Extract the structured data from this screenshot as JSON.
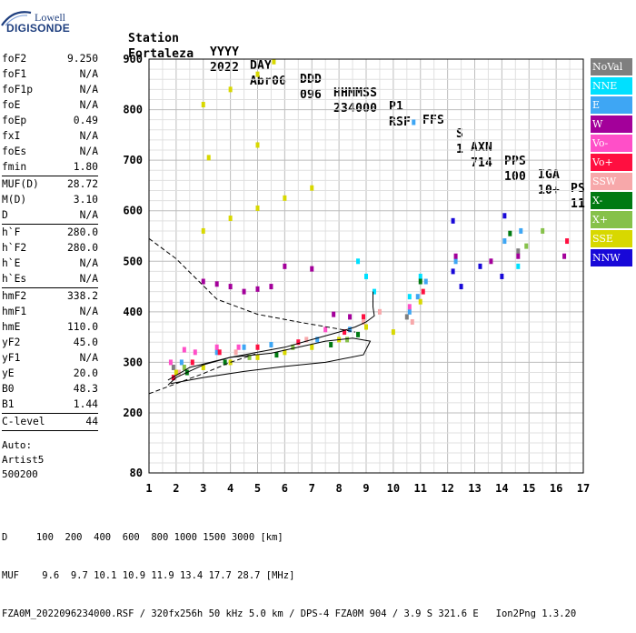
{
  "logo": {
    "line1": "Lowell",
    "line2": "DIGISONDE"
  },
  "header": {
    "labels": [
      "Station",
      "YYYY",
      "DAY",
      "DDD",
      "HHMMSS",
      "P1",
      "FFS",
      "S",
      "AXN",
      "PPS",
      "IGA",
      "PS"
    ],
    "values": [
      "Fortaleza",
      "2022",
      "Abr06",
      "096",
      "234000",
      "RSF",
      "",
      "1",
      "714",
      "100",
      "10+",
      "11"
    ]
  },
  "params": {
    "group1": [
      {
        "name": "foF2",
        "value": "9.250"
      },
      {
        "name": "foF1",
        "value": "N/A"
      },
      {
        "name": "foF1p",
        "value": "N/A"
      },
      {
        "name": "foE",
        "value": "N/A"
      },
      {
        "name": "foEp",
        "value": "0.49"
      },
      {
        "name": "fxI",
        "value": "N/A"
      },
      {
        "name": "foEs",
        "value": "N/A"
      },
      {
        "name": "fmin",
        "value": "1.80"
      }
    ],
    "group2": [
      {
        "name": "MUF(D)",
        "value": "28.72"
      },
      {
        "name": "M(D)",
        "value": "3.10"
      },
      {
        "name": "D",
        "value": "N/A"
      }
    ],
    "group3": [
      {
        "name": "h`F",
        "value": "280.0"
      },
      {
        "name": "h`F2",
        "value": "280.0"
      },
      {
        "name": "h`E",
        "value": "N/A"
      },
      {
        "name": "h`Es",
        "value": "N/A"
      }
    ],
    "group4": [
      {
        "name": "hmF2",
        "value": "338.2"
      },
      {
        "name": "hmF1",
        "value": "N/A"
      },
      {
        "name": "hmE",
        "value": "110.0"
      },
      {
        "name": "yF2",
        "value": "45.0"
      },
      {
        "name": "yF1",
        "value": "N/A"
      },
      {
        "name": "yE",
        "value": "20.0"
      },
      {
        "name": "B0",
        "value": "48.3"
      },
      {
        "name": "B1",
        "value": "1.44"
      }
    ],
    "clevel": {
      "name": "C-level",
      "value": "44"
    },
    "auto": [
      "Auto:",
      "Artist5",
      "500200"
    ]
  },
  "legend": [
    {
      "label": "NoVal",
      "color": "#7f7f7f"
    },
    {
      "label": "NNE",
      "color": "#00e0ff"
    },
    {
      "label": "E",
      "color": "#3ea6f4"
    },
    {
      "label": "W",
      "color": "#a3009a"
    },
    {
      "label": "Vo-",
      "color": "#ff4fc8"
    },
    {
      "label": "Vo+",
      "color": "#ff0f40"
    },
    {
      "label": "SSW",
      "color": "#f7a8aa"
    },
    {
      "label": "X-",
      "color": "#007a12"
    },
    {
      "label": "X+",
      "color": "#86c14a"
    },
    {
      "label": "SSE",
      "color": "#d8d800"
    },
    {
      "label": "NNW",
      "color": "#1808d8"
    }
  ],
  "bottom": {
    "line1": "D     100  200  400  600  800 1000 1500 3000 [km]",
    "line2": "MUF    9.6  9.7 10.1 10.9 11.9 13.4 17.7 28.7 [MHz]",
    "line3": "FZA0M_2022096234000.RSF / 320fx256h 50 kHz 5.0 km / DPS-4 FZA0M 904 / 3.9 S 321.6 E   Ion2Png 1.3.20"
  },
  "chart_data": {
    "type": "scatter",
    "x_ticks": [
      "1",
      "2",
      "3",
      "4",
      "5",
      "6",
      "7",
      "8",
      "9",
      "10",
      "11",
      "12",
      "13",
      "14",
      "15",
      "16",
      "17"
    ],
    "y_ticks": [
      "80",
      "200",
      "300",
      "400",
      "500",
      "600",
      "700",
      "800",
      "900"
    ],
    "xlim": [
      1,
      17
    ],
    "ylim": [
      80,
      900
    ],
    "grid": true,
    "legend_position": "right",
    "series": [
      {
        "name": "NoVal",
        "color": "#7f7f7f",
        "points": [
          [
            1.9,
            290
          ],
          [
            10.5,
            390
          ],
          [
            14.6,
            520
          ]
        ]
      },
      {
        "name": "NNE",
        "color": "#00e0ff",
        "points": [
          [
            8.7,
            500
          ],
          [
            9.0,
            470
          ],
          [
            9.3,
            440
          ],
          [
            10.6,
            430
          ],
          [
            11.0,
            470
          ],
          [
            14.6,
            490
          ]
        ]
      },
      {
        "name": "E",
        "color": "#3ea6f4",
        "points": [
          [
            2.2,
            300
          ],
          [
            3.5,
            320
          ],
          [
            4.5,
            330
          ],
          [
            5.5,
            335
          ],
          [
            7.2,
            345
          ],
          [
            8.4,
            365
          ],
          [
            10.6,
            400
          ],
          [
            10.9,
            430
          ],
          [
            11.2,
            460
          ],
          [
            12.3,
            500
          ],
          [
            14.1,
            540
          ],
          [
            14.7,
            560
          ],
          [
            10.75,
            775
          ]
        ]
      },
      {
        "name": "W",
        "color": "#a3009a",
        "points": [
          [
            3.0,
            460
          ],
          [
            3.5,
            455
          ],
          [
            4.0,
            450
          ],
          [
            4.5,
            440
          ],
          [
            5.0,
            445
          ],
          [
            5.5,
            450
          ],
          [
            6.0,
            490
          ],
          [
            7.0,
            485
          ],
          [
            7.8,
            395
          ],
          [
            8.4,
            390
          ],
          [
            12.3,
            510
          ],
          [
            13.6,
            500
          ],
          [
            14.6,
            510
          ],
          [
            16.3,
            510
          ]
        ]
      },
      {
        "name": "Vo-",
        "color": "#ff4fc8",
        "points": [
          [
            1.8,
            300
          ],
          [
            2.3,
            325
          ],
          [
            2.7,
            320
          ],
          [
            3.5,
            330
          ],
          [
            4.3,
            330
          ],
          [
            7.5,
            365
          ],
          [
            10.6,
            410
          ]
        ]
      },
      {
        "name": "Vo+",
        "color": "#ff0f40",
        "points": [
          [
            1.9,
            270
          ],
          [
            2.6,
            300
          ],
          [
            3.6,
            320
          ],
          [
            5.0,
            330
          ],
          [
            6.5,
            340
          ],
          [
            8.2,
            360
          ],
          [
            8.9,
            390
          ],
          [
            11.1,
            440
          ],
          [
            16.4,
            540
          ]
        ]
      },
      {
        "name": "SSW",
        "color": "#f7a8aa",
        "points": [
          [
            2.1,
            280
          ],
          [
            4.2,
            320
          ],
          [
            6.8,
            345
          ],
          [
            8.9,
            380
          ],
          [
            9.5,
            400
          ],
          [
            10.7,
            380
          ]
        ]
      },
      {
        "name": "X-",
        "color": "#007a12",
        "points": [
          [
            2.4,
            280
          ],
          [
            3.8,
            300
          ],
          [
            5.7,
            315
          ],
          [
            7.7,
            335
          ],
          [
            8.7,
            355
          ],
          [
            11.0,
            460
          ],
          [
            14.3,
            555
          ]
        ]
      },
      {
        "name": "X+",
        "color": "#86c14a",
        "points": [
          [
            2.3,
            290
          ],
          [
            4.7,
            310
          ],
          [
            6.3,
            330
          ],
          [
            8.3,
            345
          ],
          [
            14.9,
            530
          ],
          [
            15.5,
            560
          ]
        ]
      },
      {
        "name": "SSE",
        "color": "#d8d800",
        "points": [
          [
            2.0,
            280
          ],
          [
            3.0,
            290
          ],
          [
            4.0,
            300
          ],
          [
            5.0,
            310
          ],
          [
            6.0,
            320
          ],
          [
            7.0,
            330
          ],
          [
            8.0,
            345
          ],
          [
            9.0,
            370
          ],
          [
            10.0,
            360
          ],
          [
            11.0,
            420
          ],
          [
            3.0,
            560
          ],
          [
            4.0,
            585
          ],
          [
            5.0,
            605
          ],
          [
            6.0,
            625
          ],
          [
            7.0,
            645
          ],
          [
            3.2,
            705
          ],
          [
            5.0,
            730
          ],
          [
            3.0,
            810
          ],
          [
            4.0,
            840
          ],
          [
            5.0,
            870
          ],
          [
            5.6,
            895
          ]
        ]
      },
      {
        "name": "NNW",
        "color": "#1808d8",
        "points": [
          [
            12.2,
            480
          ],
          [
            12.5,
            450
          ],
          [
            13.2,
            490
          ],
          [
            14.0,
            470
          ],
          [
            14.1,
            590
          ],
          [
            12.2,
            580
          ]
        ]
      }
    ],
    "profile_lines": [
      {
        "style": "solid",
        "points": [
          [
            1.7,
            255
          ],
          [
            2.0,
            270
          ],
          [
            3.0,
            295
          ],
          [
            4.0,
            310
          ],
          [
            5.0,
            320
          ],
          [
            6.0,
            330
          ],
          [
            7.0,
            345
          ],
          [
            8.0,
            360
          ],
          [
            8.6,
            370
          ],
          [
            9.0,
            380
          ],
          [
            9.3,
            392
          ],
          [
            9.25,
            410
          ],
          [
            9.25,
            440
          ]
        ]
      },
      {
        "style": "solid",
        "points": [
          [
            1.7,
            265
          ],
          [
            2.5,
            290
          ],
          [
            4.0,
            310
          ],
          [
            5.5,
            318
          ],
          [
            6.5,
            330
          ],
          [
            7.5,
            342
          ],
          [
            8.5,
            348
          ],
          [
            9.15,
            342
          ],
          [
            8.9,
            315
          ],
          [
            7.5,
            300
          ],
          [
            6.0,
            292
          ],
          [
            4.5,
            282
          ],
          [
            3.0,
            270
          ],
          [
            1.8,
            258
          ]
        ]
      },
      {
        "style": "dashed",
        "points": [
          [
            1.0,
            545
          ],
          [
            2.0,
            505
          ],
          [
            3.5,
            425
          ],
          [
            5.0,
            395
          ],
          [
            6.5,
            380
          ],
          [
            8.0,
            366
          ],
          [
            8.6,
            360
          ]
        ]
      },
      {
        "style": "dashed",
        "points": [
          [
            1.0,
            238
          ],
          [
            2.0,
            258
          ],
          [
            3.0,
            278
          ],
          [
            4.0,
            300
          ],
          [
            5.0,
            318
          ]
        ]
      }
    ]
  }
}
